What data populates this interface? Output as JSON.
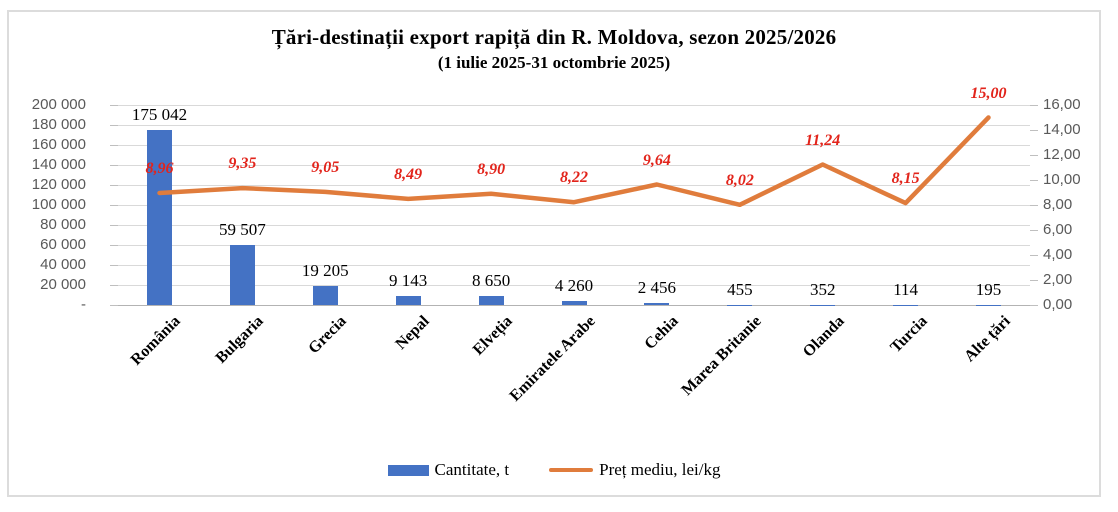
{
  "chart_data": {
    "type": "bar",
    "combo": "bar+line, dual value axes",
    "title": "Țări-destinații export rapiță din R. Moldova, sezon 2025/2026",
    "subtitle": "(1 iulie 2025-31  octombrie 2025)",
    "categories": [
      "România",
      "Bulgaria",
      "Grecia",
      "Nepal",
      "Elveția",
      "Emiratele Arabe",
      "Cehia",
      "Marea Britanie",
      "Olanda",
      "Turcia",
      "Alte țări"
    ],
    "series": [
      {
        "name": "Cantitate, t",
        "type": "bar",
        "axis": "left",
        "color": "#4472C4",
        "values": [
          175042,
          59507,
          19205,
          9143,
          8650,
          4260,
          2456,
          455,
          352,
          114,
          195
        ],
        "labels": [
          "175 042",
          "59 507",
          "19 205",
          "9 143",
          "8 650",
          "4 260",
          "2 456",
          "455",
          "352",
          "114",
          "195"
        ]
      },
      {
        "name": "Preț mediu, lei/kg",
        "type": "line",
        "axis": "right",
        "color": "#E07C3C",
        "label_color": "#E2241B",
        "values": [
          8.96,
          9.35,
          9.05,
          8.49,
          8.9,
          8.22,
          9.64,
          8.02,
          11.24,
          8.15,
          15.0
        ],
        "labels": [
          "8,96",
          "9,35",
          "9,05",
          "8,49",
          "8,90",
          "8,22",
          "9,64",
          "8,02",
          "11,24",
          "8,15",
          "15,00"
        ]
      }
    ],
    "left_axis": {
      "min": 0,
      "max": 200000,
      "step": 20000,
      "tick_labels": [
        "200 000",
        "180 000",
        "160 000",
        "140 000",
        "120 000",
        "100 000",
        "80 000",
        "60 000",
        "40 000",
        "20 000",
        "-"
      ]
    },
    "right_axis": {
      "min": 0,
      "max": 16,
      "step": 2,
      "tick_labels": [
        "16,00",
        "14,00",
        "12,00",
        "10,00",
        "8,00",
        "6,00",
        "4,00",
        "2,00",
        "0,00"
      ]
    },
    "grid": true,
    "legend_position": "bottom"
  },
  "colors": {
    "grid": "#D9D9D9",
    "axis_line": "#B3B3B3",
    "tick": "#BFBFBF",
    "axis_text": "#595959",
    "bar_label": "#000000"
  }
}
